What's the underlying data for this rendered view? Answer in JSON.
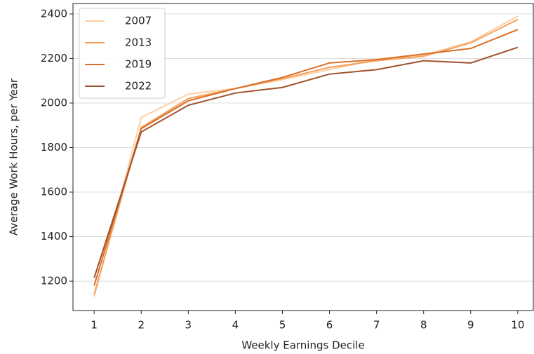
{
  "chart_data": {
    "type": "line",
    "xlabel": "Weekly Earnings Decile",
    "ylabel": "Average Work Hours, per Year",
    "x": [
      1,
      2,
      3,
      4,
      5,
      6,
      7,
      8,
      9,
      10
    ],
    "xlim": [
      0.55,
      10.33
    ],
    "xticks": [
      1,
      2,
      3,
      4,
      5,
      6,
      7,
      8,
      9,
      10
    ],
    "ylim": [
      1068,
      2447
    ],
    "yticks": [
      1200,
      1400,
      1600,
      1800,
      2000,
      2200,
      2400
    ],
    "grid": true,
    "legend": "upper-left",
    "series": [
      {
        "name": "2007",
        "color": "#fdd0a2",
        "values": [
          1130,
          1935,
          2040,
          2065,
          2105,
          2150,
          2195,
          2215,
          2275,
          2390
        ]
      },
      {
        "name": "2013",
        "color": "#f4a05c",
        "values": [
          1140,
          1890,
          2020,
          2065,
          2110,
          2160,
          2190,
          2210,
          2270,
          2375
        ]
      },
      {
        "name": "2019",
        "color": "#d96f26",
        "values": [
          1180,
          1885,
          2010,
          2065,
          2115,
          2180,
          2195,
          2220,
          2245,
          2330
        ]
      },
      {
        "name": "2022",
        "color": "#a0522d",
        "values": [
          1215,
          1870,
          1990,
          2045,
          2070,
          2130,
          2150,
          2190,
          2180,
          2250
        ]
      }
    ]
  }
}
